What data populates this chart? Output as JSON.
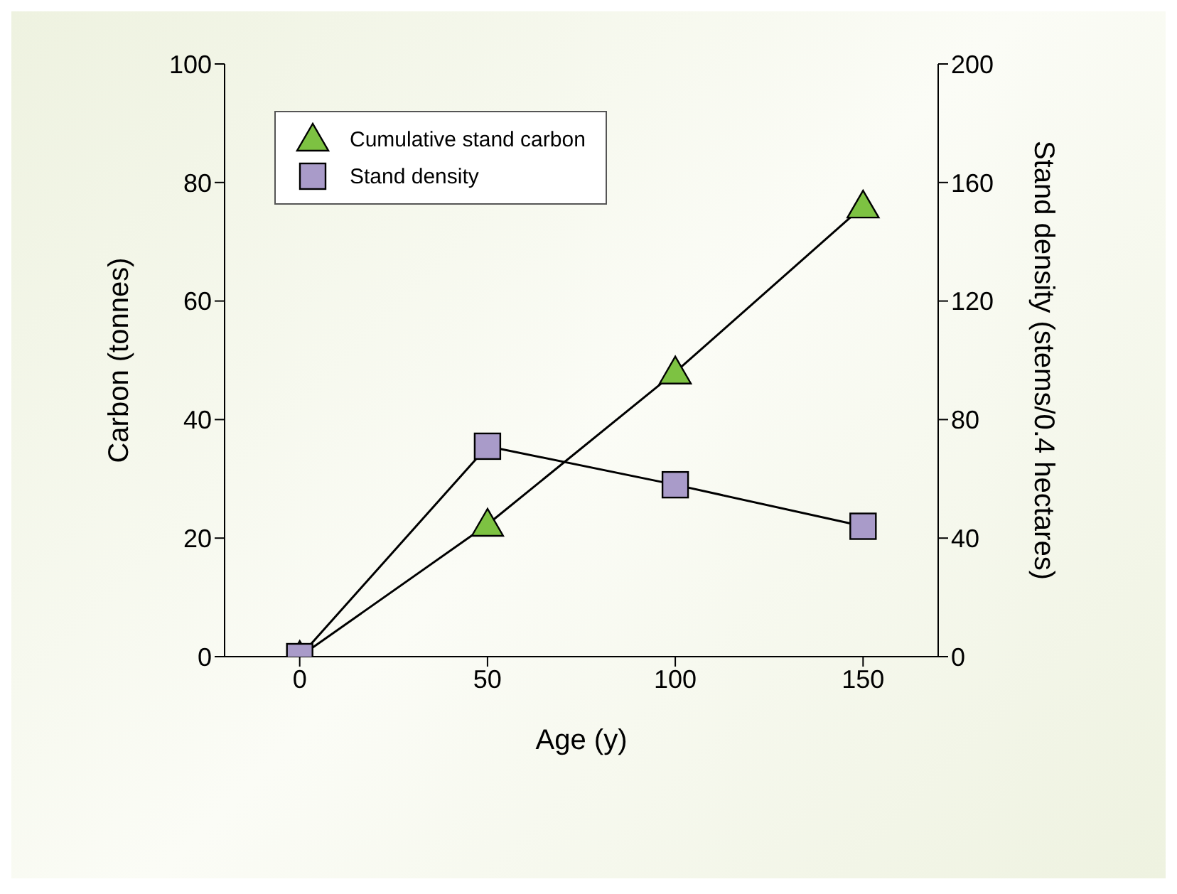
{
  "chart_data": {
    "type": "line",
    "xlabel": "Age (y)",
    "ylabel": "Carbon (tonnes)",
    "y2label": "Stand density (stems/0.4 hectares)",
    "x": [
      0,
      50,
      100,
      150
    ],
    "series": [
      {
        "name": "Cumulative stand carbon",
        "color": "#7dc242",
        "values": [
          0,
          22.3,
          48,
          76
        ],
        "marker": "triangle"
      },
      {
        "name": "Stand density",
        "color": "#a99bc9",
        "values": [
          0,
          71,
          58,
          44
        ],
        "marker": "square",
        "axis": "y2"
      }
    ],
    "xlim": [
      -20,
      170
    ],
    "xticks": [
      0,
      50,
      100,
      150
    ],
    "ylim": [
      0,
      100
    ],
    "yticks": [
      0,
      20,
      40,
      60,
      80,
      100
    ],
    "y2lim": [
      0,
      200
    ],
    "y2ticks": [
      0,
      40,
      80,
      120,
      160,
      200
    ],
    "grid": false,
    "legend": "top left"
  }
}
